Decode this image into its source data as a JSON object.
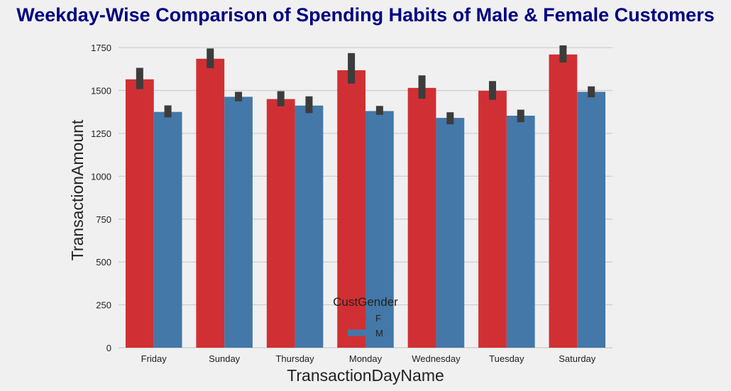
{
  "chart_data": {
    "type": "bar",
    "title": "Weekday-Wise Comparison of Spending Habits of Male & Female Customers",
    "xlabel": "TransactionDayName",
    "ylabel": "TransactionAmount",
    "categories": [
      "Friday",
      "Sunday",
      "Thursday",
      "Monday",
      "Wednesday",
      "Tuesday",
      "Saturday"
    ],
    "ylim": [
      0,
      1800
    ],
    "yticks": [
      0,
      250,
      500,
      750,
      1000,
      1250,
      1500,
      1750
    ],
    "grid": "horizontal",
    "legend": {
      "title": "CustGender",
      "placement": "bottom-center"
    },
    "series": [
      {
        "name": "F",
        "color": "#d03033",
        "values": [
          1565,
          1685,
          1450,
          1618,
          1515,
          1498,
          1710
        ],
        "error_low": [
          1508,
          1630,
          1408,
          1540,
          1452,
          1445,
          1663
        ],
        "error_high": [
          1632,
          1745,
          1496,
          1718,
          1588,
          1555,
          1763
        ]
      },
      {
        "name": "M",
        "color": "#4378a8",
        "values": [
          1375,
          1463,
          1412,
          1380,
          1340,
          1353,
          1492
        ],
        "error_low": [
          1343,
          1437,
          1368,
          1358,
          1303,
          1315,
          1460
        ],
        "error_high": [
          1413,
          1492,
          1466,
          1410,
          1373,
          1388,
          1524
        ]
      }
    ],
    "error_bar_color": "#3c3c3c"
  }
}
